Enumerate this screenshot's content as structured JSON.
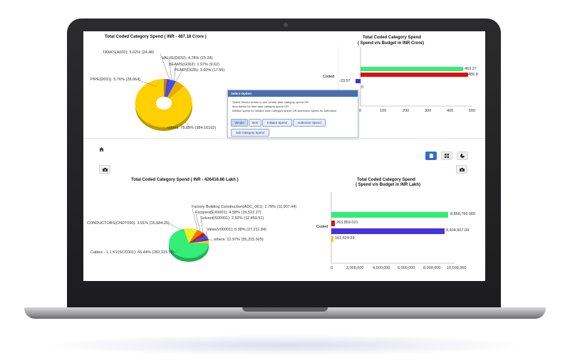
{
  "top_pie": {
    "title": "Total Coded Category Spend ( INR - 487.18 Crore )",
    "labels": {
      "tanks": "TANKS(A002): 5.02% (24.48)",
      "valve": "VALVE(D032): 4.78% (23.28)",
      "beams": "BEAMS(G002): 1.97% (9.62)",
      "pump": "PUMP(D035): 3.60% (17.55)",
      "pipe": "PIPE(D031): 5.76% (28.064)",
      "others": "others: 78.85% (384.16102)"
    }
  },
  "top_bar": {
    "title_line1": "Total Coded Category Spend",
    "title_line2": "( Spend v/s Budget in INR Crore)",
    "category": "Coded",
    "value_labels": {
      "spend": "463.27",
      "budget": "486.8",
      "neg": "-23.57",
      "zero": "0"
    },
    "ticks": [
      "0",
      "100",
      "200",
      "300",
      "400",
      "500"
    ]
  },
  "dialog": {
    "header": "Select Option",
    "lines": [
      "Select Vendor button to see vendor wise category spend OR",
      "Item button for item wise category spend OR",
      "Initiator spend for initiator wise Category spend OR Authorizer spend for Authorizer"
    ],
    "buttons": {
      "vendor": "Vendor",
      "item": "Item",
      "initiator": "Initiator Spend",
      "authorizer": "Authorizer Spend",
      "subcategory": "Sub Category Spend"
    }
  },
  "bottom_pie": {
    "title": "Total Coded Category Spend ( INR - 426416.86 Lakh )",
    "labels": {
      "factory": "Factory Building Construction(ADC_001): 2.79% (11,907.44)",
      "excipent": "Excipent(EX0001): 4.58% (19,522.27)",
      "solvent": "Solvent(S00001): 2.92% (12,459.51)",
      "conductors": "CONDUCTORS(CNDT090): 3.91% (16,684.35)",
      "valve": "Valve(V00001): 6.38% (27,211.84)",
      "others": "others: 12.97% (55,315.925)",
      "cables": "Cables - 1.1 KV(SCC001): 66.44% (283,315.53)"
    }
  },
  "bottom_bar": {
    "title_line1": "Total Coded Category Spend",
    "title_line2": "( Spend v/s Budget in INR Lakh)",
    "category": "Coded",
    "value_labels": {
      "s1": "8,868,766.065",
      "s2": "263,859.021",
      "s3": "8,604,907.04",
      "s4": "161,629.29"
    },
    "ticks": [
      "0",
      "2,000,000",
      "4,000,000",
      "6,000,000",
      "8,000,000",
      "10,000,000"
    ]
  },
  "colors": {
    "green": "#33ee77",
    "red": "#dd1111",
    "blue": "#4433dd",
    "yellow": "#eecc00",
    "accent": "#2f6fd0"
  },
  "chart_data": [
    {
      "type": "pie",
      "title": "Total Coded Category Spend ( INR - 487.18 Crore )",
      "categories": [
        "TANKS(A002)",
        "VALVE(D032)",
        "BEAMS(G002)",
        "PUMP(D035)",
        "PIPE(D031)",
        "others"
      ],
      "values": [
        24.48,
        23.28,
        9.62,
        17.55,
        28.064,
        384.16102
      ]
    },
    {
      "type": "bar",
      "title": "Total Coded Category Spend ( Spend v/s Budget in INR Crore)",
      "categories": [
        "Coded"
      ],
      "series": [
        {
          "values": [
            463.27
          ]
        },
        {
          "values": [
            486.8
          ]
        },
        {
          "values": [
            -23.57
          ]
        },
        {
          "values": [
            0
          ]
        }
      ],
      "xlim": [
        0,
        500
      ]
    },
    {
      "type": "pie",
      "title": "Total Coded Category Spend ( INR - 426416.86 Lakh )",
      "categories": [
        "Factory Building Construction(ADC_001)",
        "Excipent(EX0001)",
        "Solvent(S00001)",
        "CONDUCTORS(CNDT090)",
        "Valve(V00001)",
        "others",
        "Cables - 1.1 KV(SCC001)"
      ],
      "values": [
        11907.44,
        19522.27,
        12459.51,
        16684.35,
        27211.84,
        55315.925,
        283315.53
      ]
    },
    {
      "type": "bar",
      "title": "Total Coded Category Spend ( Spend v/s Budget in INR Lakh)",
      "categories": [
        "Coded"
      ],
      "series": [
        {
          "values": [
            8868766.065
          ]
        },
        {
          "values": [
            263859.021
          ]
        },
        {
          "values": [
            8604907.04
          ]
        },
        {
          "values": [
            161629.29
          ]
        }
      ],
      "xlim": [
        0,
        10000000
      ]
    }
  ]
}
